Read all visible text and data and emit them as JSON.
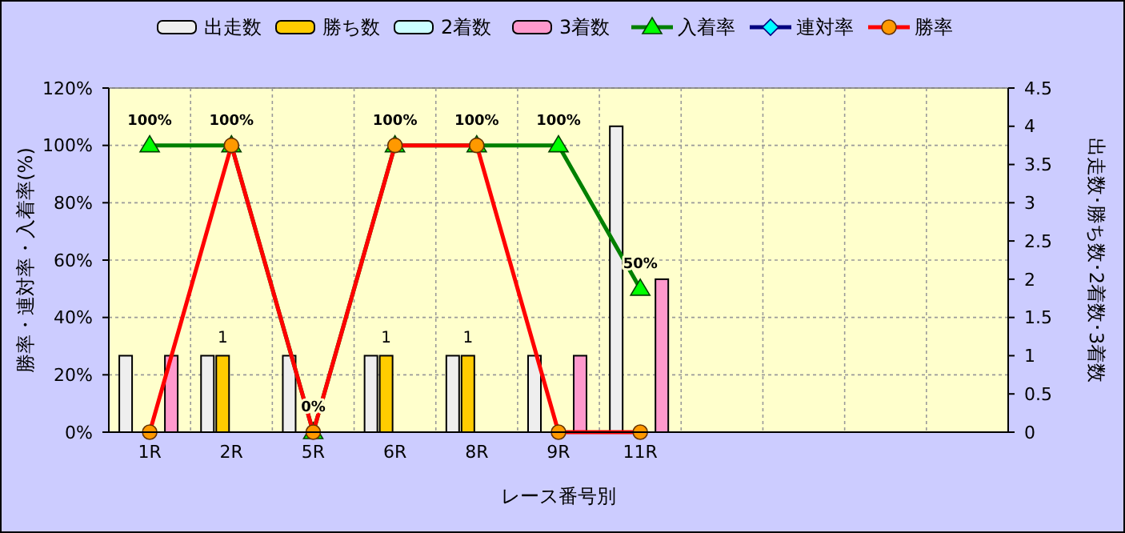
{
  "chart_data": {
    "type": "bar",
    "xlabel": "レース番号別",
    "ylabel": "勝率・連対率・入着率(%)",
    "y2label": "出走数･勝ち数･2着数･3着数",
    "categories": [
      "1R",
      "2R",
      "5R",
      "6R",
      "8R",
      "9R",
      "11R",
      null,
      null,
      null,
      null
    ],
    "series": [
      {
        "name": "出走数",
        "axis": "y2",
        "color": "#eeeeee",
        "values": [
          1,
          1,
          1,
          1,
          1,
          1,
          4,
          null,
          null,
          null,
          null
        ]
      },
      {
        "name": "勝ち数",
        "axis": "y2",
        "color": "#ffcc00",
        "values": [
          0,
          1,
          0,
          1,
          1,
          0,
          0,
          null,
          null,
          null,
          null
        ],
        "value_labels": [
          null,
          "1",
          null,
          "1",
          "1",
          null,
          null,
          null,
          null,
          null,
          null
        ]
      },
      {
        "name": "2着数",
        "axis": "y2",
        "color": "#ccffff",
        "values": [
          0,
          0,
          0,
          0,
          0,
          0,
          0,
          null,
          null,
          null,
          null
        ]
      },
      {
        "name": "3着数",
        "axis": "y2",
        "color": "#ff99cc",
        "values": [
          1,
          0,
          0,
          0,
          0,
          1,
          2,
          null,
          null,
          null,
          null
        ]
      },
      {
        "name": "入着率",
        "type": "line",
        "color": "#008000",
        "marker": "triangle",
        "values": [
          100,
          100,
          0,
          100,
          100,
          100,
          50,
          null,
          null,
          null,
          null
        ],
        "value_labels": [
          "100%",
          "100%",
          "0%",
          "100%",
          "100%",
          "100%",
          "50%",
          null,
          null,
          null,
          null
        ]
      },
      {
        "name": "連対率",
        "type": "line",
        "color": "#000080",
        "marker": "diamond",
        "values": [
          null,
          null,
          null,
          null,
          null,
          null,
          null,
          null,
          null,
          null,
          null
        ]
      },
      {
        "name": "勝率",
        "type": "line",
        "color": "#ff0000",
        "marker": "circle",
        "values": [
          0,
          100,
          0,
          100,
          100,
          0,
          0,
          null,
          null,
          null,
          null
        ]
      }
    ],
    "ylim": [
      0,
      120
    ],
    "yticks": [
      {
        "value": 0,
        "label": "0%"
      },
      {
        "value": 20,
        "label": "20%"
      },
      {
        "value": 40,
        "label": "40%"
      },
      {
        "value": 60,
        "label": "60%"
      },
      {
        "value": 80,
        "label": "80%"
      },
      {
        "value": 100,
        "label": "100%"
      },
      {
        "value": 120,
        "label": "120%"
      }
    ],
    "y2lim": [
      0,
      4.5
    ],
    "y2ticks": [
      0,
      0.5,
      1,
      1.5,
      2,
      2.5,
      3,
      3.5,
      4,
      4.5
    ],
    "grid": true,
    "legend": "top"
  }
}
